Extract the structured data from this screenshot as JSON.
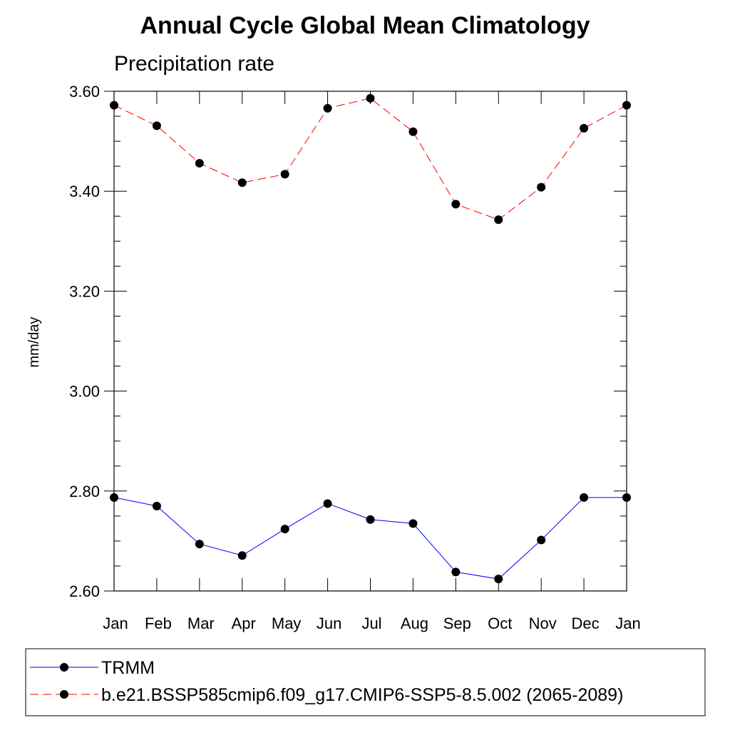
{
  "chart_data": {
    "type": "line",
    "title": "Annual Cycle Global Mean Climatology",
    "subtitle": "Precipitation rate",
    "xlabel": "",
    "ylabel": "mm/day",
    "categories": [
      "Jan",
      "Feb",
      "Mar",
      "Apr",
      "May",
      "Jun",
      "Jul",
      "Aug",
      "Sep",
      "Oct",
      "Nov",
      "Dec",
      "Jan"
    ],
    "ylim": [
      2.6,
      3.6
    ],
    "yticks": [
      2.6,
      2.8,
      3.0,
      3.2,
      3.4,
      3.6
    ],
    "ytick_labels": [
      "2.60",
      "2.80",
      "3.00",
      "3.20",
      "3.40",
      "3.60"
    ],
    "grid": false,
    "legend_position": "bottom",
    "series": [
      {
        "name": "TRMM",
        "color": "#0000ff",
        "dash": "solid",
        "values": [
          2.787,
          2.77,
          2.694,
          2.671,
          2.724,
          2.775,
          2.743,
          2.735,
          2.638,
          2.624,
          2.702,
          2.787,
          2.787
        ]
      },
      {
        "name": "b.e21.BSSP585cmip6.f09_g17.CMIP6-SSP5-8.5.002 (2065-2089)",
        "color": "#ff0000",
        "dash": "dashed",
        "values": [
          3.572,
          3.531,
          3.456,
          3.417,
          3.434,
          3.566,
          3.586,
          3.519,
          3.374,
          3.343,
          3.408,
          3.526,
          3.572
        ]
      }
    ]
  }
}
